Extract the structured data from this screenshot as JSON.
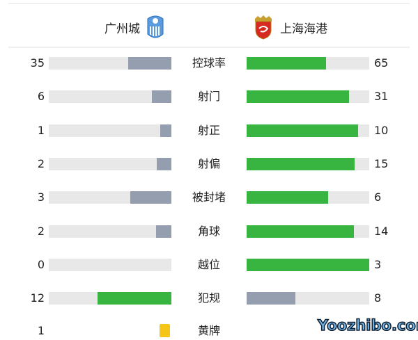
{
  "home": {
    "name": "广州城",
    "logo": "guangzhou-city-crest"
  },
  "away": {
    "name": "上海海港",
    "logo": "shanghai-port-crest"
  },
  "colors": {
    "leading": "#38b440",
    "trailing": "#959eae",
    "track": "#e8e8e8",
    "yellow": "#f5c518"
  },
  "stats": [
    {
      "label": "控球率",
      "home": "35",
      "away": "65",
      "home_share": 0.35
    },
    {
      "label": "射门",
      "home": "6",
      "away": "31",
      "home_share": 0.162
    },
    {
      "label": "射正",
      "home": "1",
      "away": "10",
      "home_share": 0.091
    },
    {
      "label": "射偏",
      "home": "2",
      "away": "15",
      "home_share": 0.118
    },
    {
      "label": "被封堵",
      "home": "3",
      "away": "6",
      "home_share": 0.333
    },
    {
      "label": "角球",
      "home": "2",
      "away": "14",
      "home_share": 0.125
    },
    {
      "label": "越位",
      "home": "0",
      "away": "3",
      "home_share": 0
    },
    {
      "label": "犯规",
      "home": "12",
      "away": "8",
      "home_share": 0.6
    }
  ],
  "yellow": {
    "label": "黄牌",
    "home": "1"
  },
  "watermark": "Yoozhibo.com"
}
